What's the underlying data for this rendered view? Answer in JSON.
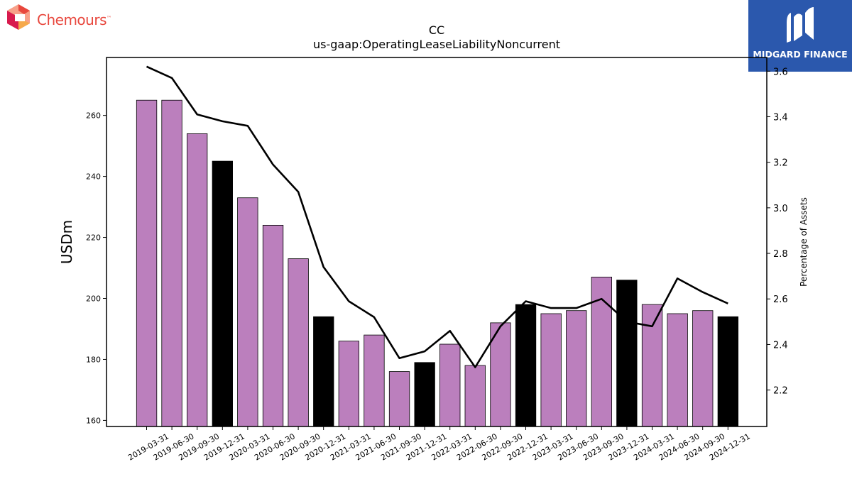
{
  "brand_left": {
    "name": "Chemours",
    "tm": "™"
  },
  "brand_right": {
    "name": "MIDGARD FINANCE"
  },
  "chart_data": {
    "type": "bar",
    "title": "CC",
    "subtitle": "us-gaap:OperatingLeaseLiabilityNoncurrent",
    "ylabel": "USDm",
    "y2label": "Percentage of Assets",
    "ylim": [
      158,
      279
    ],
    "y2lim": [
      2.04,
      3.66
    ],
    "yticks": [
      160,
      180,
      200,
      220,
      240,
      260
    ],
    "y2ticks": [
      "2.2",
      "2.4",
      "2.6",
      "2.8",
      "3.0",
      "3.2",
      "3.4",
      "3.6"
    ],
    "categories": [
      "2019-03-31",
      "2019-06-30",
      "2019-09-30",
      "2019-12-31",
      "2020-03-31",
      "2020-06-30",
      "2020-09-30",
      "2020-12-31",
      "2021-03-31",
      "2021-06-30",
      "2021-09-30",
      "2021-12-31",
      "2022-03-31",
      "2022-06-30",
      "2022-09-30",
      "2022-12-31",
      "2023-03-31",
      "2023-06-30",
      "2023-09-30",
      "2023-12-31",
      "2024-03-31",
      "2024-06-30",
      "2024-09-30",
      "2024-12-31"
    ],
    "series": [
      {
        "values": [
          265,
          265,
          254,
          245,
          233,
          224,
          213,
          194,
          186,
          188,
          176,
          179,
          185,
          178,
          192,
          198,
          195,
          196,
          207,
          206,
          198,
          195,
          196,
          194
        ]
      },
      {
        "values": [
          3.62,
          3.57,
          3.41,
          3.38,
          3.36,
          3.19,
          3.07,
          2.74,
          2.59,
          2.52,
          2.34,
          2.37,
          2.46,
          2.3,
          2.48,
          2.59,
          2.56,
          2.56,
          2.6,
          2.5,
          2.48,
          2.69,
          2.63,
          2.58
        ]
      }
    ],
    "year_end_color": "#000000",
    "bar_color": "#bb7fbd",
    "line_color": "#000000",
    "grid": false,
    "legend": "none"
  }
}
